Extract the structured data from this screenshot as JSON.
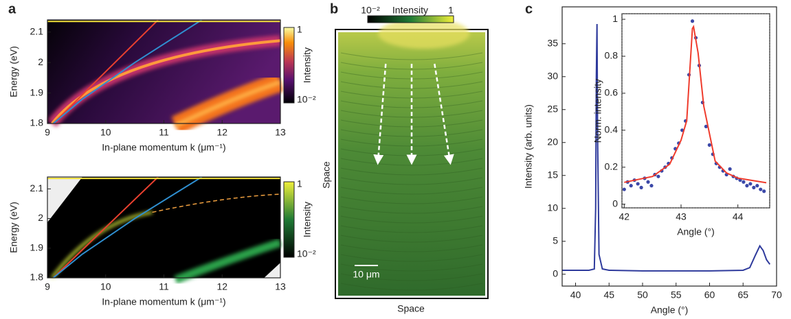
{
  "chart_data": [
    {
      "type": "line",
      "panel_label": "a",
      "colormap": "inferno",
      "xlabel": "In-plane momentum k (μm⁻¹)",
      "ylabel": "Energy (eV)",
      "xlim": [
        9,
        13
      ],
      "ylim": [
        1.8,
        2.14
      ],
      "xticks": [
        9,
        10,
        11,
        12,
        13
      ],
      "yticks": [
        1.8,
        1.9,
        2,
        2.1
      ],
      "colorbar": {
        "title": "Intensity",
        "labels": [
          "1",
          "10⁻²"
        ]
      },
      "series": [
        {
          "color": "#e8402f",
          "x": [
            9.1,
            10.9
          ],
          "values": [
            1.8,
            2.14
          ]
        },
        {
          "color": "#2f8fd0",
          "x": [
            9.1,
            9.6,
            10.5,
            11.65
          ],
          "values": [
            1.8,
            1.88,
            2.0,
            2.14
          ]
        },
        {
          "color": "#f2e23a",
          "x": [
            9,
            13
          ],
          "values": [
            2.135,
            2.135
          ]
        }
      ]
    },
    {
      "type": "line",
      "colormap": "green",
      "xlabel": "In-plane momentum k (μm⁻¹)",
      "ylabel": "Energy (eV)",
      "xlim": [
        9,
        13
      ],
      "ylim": [
        1.8,
        2.14
      ],
      "xticks": [
        9,
        10,
        11,
        12,
        13
      ],
      "yticks": [
        1.8,
        1.9,
        2,
        2.1
      ],
      "colorbar": {
        "title": "Intensity",
        "labels": [
          "1",
          "10⁻²"
        ]
      },
      "series": [
        {
          "color": "#e8402f",
          "x": [
            9.1,
            10.9
          ],
          "values": [
            1.8,
            2.14
          ]
        },
        {
          "color": "#2f8fd0",
          "x": [
            9.1,
            9.6,
            10.5,
            11.65
          ],
          "values": [
            1.8,
            1.88,
            2.0,
            2.14
          ]
        },
        {
          "color": "#f2e23a",
          "x": [
            9,
            13
          ],
          "values": [
            2.135,
            2.135
          ]
        }
      ]
    },
    {
      "type": "image",
      "panel_label": "b",
      "xlabel": "Space",
      "ylabel": "Space",
      "scale_bar": "10 μm",
      "colorbar": {
        "title": "Intensity",
        "labels": [
          "10⁻²",
          "1"
        ]
      }
    },
    {
      "type": "line",
      "panel_label": "c",
      "xlabel": "Angle (°)",
      "ylabel": "Intensity (arb. units)",
      "xlim": [
        38,
        70
      ],
      "ylim": [
        -1.8,
        40.6
      ],
      "xticks": [
        40,
        45,
        50,
        55,
        60,
        65,
        70
      ],
      "yticks": [
        0,
        5,
        10,
        15,
        20,
        25,
        30,
        35
      ],
      "series": [
        {
          "color": "#2e3a9c",
          "x": [
            38,
            40,
            42,
            42.8,
            43,
            43.1,
            43.2,
            43.3,
            43.5,
            44,
            45,
            50,
            55,
            60,
            65,
            66,
            66.8,
            67.5,
            68,
            68.5,
            69
          ],
          "values": [
            0.6,
            0.6,
            0.6,
            0.8,
            10,
            30,
            38,
            20,
            3,
            0.8,
            0.6,
            0.5,
            0.5,
            0.5,
            0.6,
            1,
            2.8,
            4.3,
            3.6,
            2.2,
            1.5
          ]
        }
      ],
      "inset": {
        "type": "line",
        "xlabel": "Angle (°)",
        "ylabel": "Norm. intensity",
        "xlim": [
          41.96,
          44.56
        ],
        "ylim": [
          -0.02,
          1.03
        ],
        "xticks": [
          42,
          43,
          44
        ],
        "yticks": [
          0,
          0.2,
          0.4,
          0.6,
          0.8,
          1
        ],
        "series": [
          {
            "type": "scatter",
            "color": "#3b48a8",
            "x": [
              42.0,
              42.06,
              42.12,
              42.18,
              42.24,
              42.3,
              42.36,
              42.42,
              42.48,
              42.54,
              42.6,
              42.66,
              42.72,
              42.78,
              42.84,
              42.9,
              42.96,
              43.02,
              43.08,
              43.14,
              43.2,
              43.26,
              43.32,
              43.38,
              43.44,
              43.5,
              43.56,
              43.62,
              43.68,
              43.74,
              43.8,
              43.86,
              43.92,
              43.98,
              44.04,
              44.1,
              44.16,
              44.22,
              44.28,
              44.34,
              44.4,
              44.46
            ],
            "values": [
              0.08,
              0.12,
              0.1,
              0.13,
              0.11,
              0.09,
              0.14,
              0.12,
              0.1,
              0.16,
              0.15,
              0.18,
              0.2,
              0.22,
              0.25,
              0.3,
              0.33,
              0.4,
              0.45,
              0.7,
              0.99,
              0.9,
              0.75,
              0.55,
              0.42,
              0.32,
              0.27,
              0.22,
              0.2,
              0.18,
              0.16,
              0.19,
              0.15,
              0.14,
              0.13,
              0.12,
              0.1,
              0.11,
              0.09,
              0.1,
              0.08,
              0.07
            ]
          },
          {
            "type": "line",
            "color": "#ef3b2c",
            "x": [
              42,
              42.5,
              42.8,
              43,
              43.1,
              43.2,
              43.22,
              43.3,
              43.4,
              43.6,
              43.8,
              44,
              44.5
            ],
            "values": [
              0.118,
              0.15,
              0.216,
              0.346,
              0.452,
              0.95,
              0.96,
              0.818,
              0.53,
              0.233,
              0.169,
              0.141,
              0.116
            ]
          }
        ]
      }
    }
  ]
}
